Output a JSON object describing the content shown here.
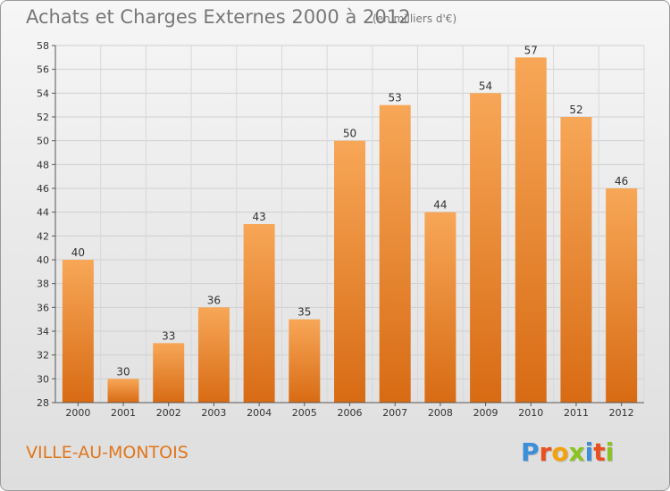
{
  "header": {
    "title": "Achats et Charges Externes 2000 à 2012",
    "unit": "(en milliers d'€)"
  },
  "footer": {
    "commune": "VILLE-AU-MONTOIS",
    "logo_letters": [
      "P",
      "r",
      "o",
      "x",
      "i",
      "t",
      "i"
    ]
  },
  "colors": {
    "bar_light": "#f7a757",
    "bar_dark": "#d86b14",
    "commune_text": "#e0761d",
    "logo": [
      "#3b8fd9",
      "#e8501f",
      "#f2a20d",
      "#8bc321",
      "#3b8fd9",
      "#e8501f",
      "#8bc321"
    ]
  },
  "chart_data": {
    "type": "bar",
    "title": "Achats et Charges Externes 2000 à 2012",
    "subtitle": "(en milliers d'€)",
    "categories": [
      "2000",
      "2001",
      "2002",
      "2003",
      "2004",
      "2005",
      "2006",
      "2007",
      "2008",
      "2009",
      "2010",
      "2011",
      "2012"
    ],
    "values": [
      40,
      30,
      33,
      36,
      43,
      35,
      50,
      53,
      44,
      54,
      57,
      52,
      46
    ],
    "ylim": [
      28,
      58
    ],
    "yticks": [
      28,
      30,
      32,
      34,
      36,
      38,
      40,
      42,
      44,
      46,
      48,
      50,
      52,
      54,
      56,
      58
    ],
    "grid": true,
    "data_labels": true
  }
}
